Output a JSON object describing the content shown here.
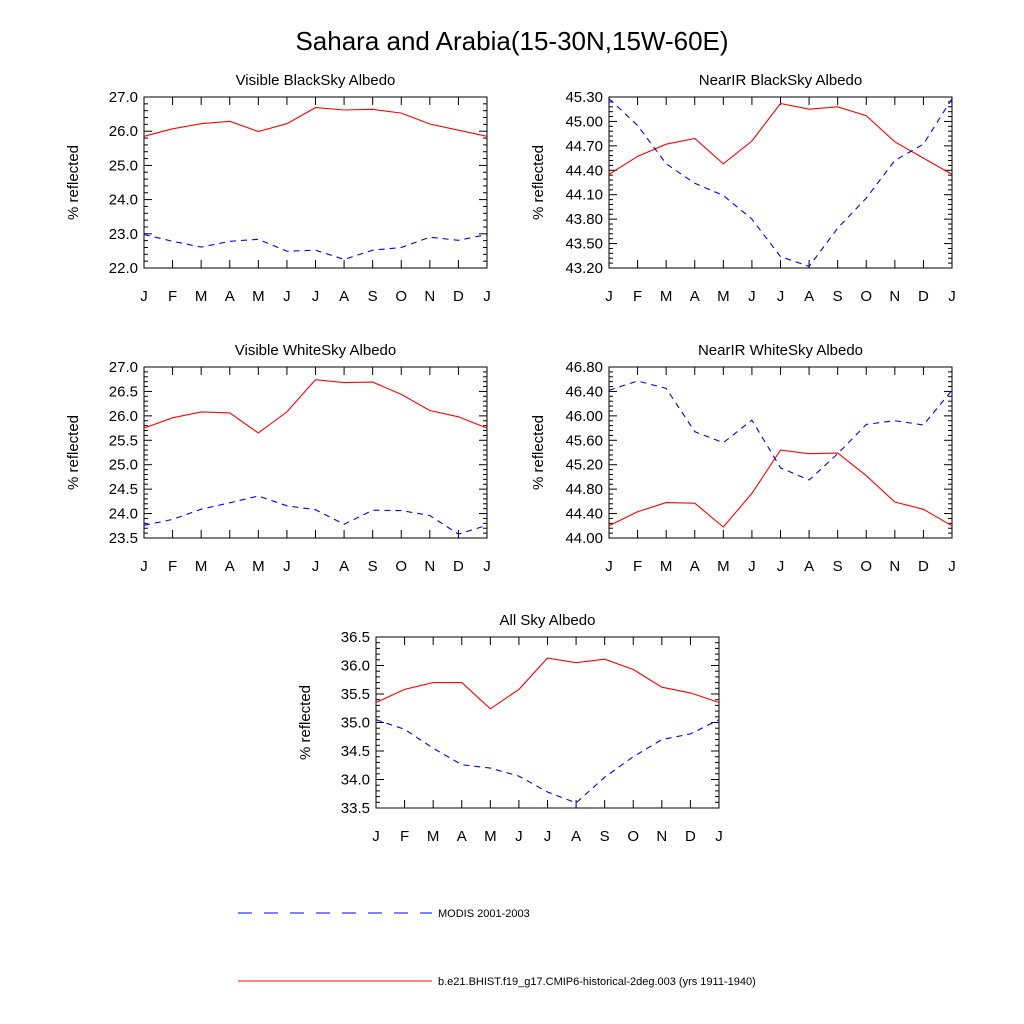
{
  "title": "Sahara and Arabia(15-30N,15W-60E)",
  "colors": {
    "model": "#ff0000",
    "obs": "#0000ff",
    "axis": "#000000"
  },
  "legend": {
    "obs_label": "MODIS 2001-2003",
    "model_label": "b.e21.BHIST.f19_g17.CMIP6-historical-2deg.003 (yrs 1911-1940)"
  },
  "chart_data": [
    {
      "type": "line",
      "title": "Visible BlackSky Albedo",
      "ylabel": "% reflected",
      "categories": [
        "J",
        "F",
        "M",
        "A",
        "M",
        "J",
        "J",
        "A",
        "S",
        "O",
        "N",
        "D",
        "J"
      ],
      "ylim": [
        22.0,
        27.0
      ],
      "yticks": [
        "27.0",
        "26.0",
        "25.0",
        "24.0",
        "23.0",
        "22.0"
      ],
      "series": [
        {
          "name": "b.e21.BHIST.f19_g17.CMIP6-historical-2deg.003 (yrs 1911-1940)",
          "style": "solid",
          "color": "#ff0000",
          "values": [
            25.85,
            26.07,
            26.22,
            26.29,
            25.99,
            26.22,
            26.69,
            26.62,
            26.64,
            26.53,
            26.21,
            26.03,
            25.85
          ]
        },
        {
          "name": "MODIS 2001-2003",
          "style": "dashed",
          "color": "#0000ff",
          "values": [
            22.98,
            22.78,
            22.61,
            22.78,
            22.84,
            22.49,
            22.52,
            22.25,
            22.52,
            22.6,
            22.9,
            22.81,
            22.98
          ]
        }
      ]
    },
    {
      "type": "line",
      "title": "NearIR BlackSky Albedo",
      "ylabel": "% reflected",
      "categories": [
        "J",
        "F",
        "M",
        "A",
        "M",
        "J",
        "J",
        "A",
        "S",
        "O",
        "N",
        "D",
        "J"
      ],
      "ylim": [
        43.2,
        45.3
      ],
      "yticks": [
        "45.30",
        "45.00",
        "44.70",
        "44.40",
        "44.10",
        "43.80",
        "43.50",
        "43.20"
      ],
      "series": [
        {
          "name": "b.e21.BHIST.f19_g17.CMIP6-historical-2deg.003 (yrs 1911-1940)",
          "style": "solid",
          "color": "#ff0000",
          "values": [
            44.35,
            44.57,
            44.72,
            44.79,
            44.48,
            44.76,
            45.22,
            45.15,
            45.18,
            45.07,
            44.75,
            44.55,
            44.35
          ]
        },
        {
          "name": "MODIS 2001-2003",
          "style": "dashed",
          "color": "#0000ff",
          "values": [
            45.28,
            44.95,
            44.48,
            44.24,
            44.09,
            43.8,
            43.34,
            43.22,
            43.69,
            44.06,
            44.52,
            44.72,
            45.28
          ]
        }
      ]
    },
    {
      "type": "line",
      "title": "Visible WhiteSky Albedo",
      "ylabel": "% reflected",
      "categories": [
        "J",
        "F",
        "M",
        "A",
        "M",
        "J",
        "J",
        "A",
        "S",
        "O",
        "N",
        "D",
        "J"
      ],
      "ylim": [
        23.5,
        27.0
      ],
      "yticks": [
        "27.0",
        "26.5",
        "26.0",
        "25.5",
        "25.0",
        "24.5",
        "24.0",
        "23.5"
      ],
      "series": [
        {
          "name": "b.e21.BHIST.f19_g17.CMIP6-historical-2deg.003 (yrs 1911-1940)",
          "style": "solid",
          "color": "#ff0000",
          "values": [
            25.75,
            25.96,
            26.08,
            26.06,
            25.65,
            26.08,
            26.74,
            26.68,
            26.69,
            26.44,
            26.11,
            25.98,
            25.75
          ]
        },
        {
          "name": "MODIS 2001-2003",
          "style": "dashed",
          "color": "#0000ff",
          "values": [
            23.76,
            23.88,
            24.09,
            24.22,
            24.36,
            24.16,
            24.08,
            23.78,
            24.07,
            24.06,
            23.96,
            23.58,
            23.76
          ]
        }
      ]
    },
    {
      "type": "line",
      "title": "NearIR WhiteSky Albedo",
      "ylabel": "% reflected",
      "categories": [
        "J",
        "F",
        "M",
        "A",
        "M",
        "J",
        "J",
        "A",
        "S",
        "O",
        "N",
        "D",
        "J"
      ],
      "ylim": [
        44.0,
        46.8
      ],
      "yticks": [
        "46.80",
        "46.40",
        "46.00",
        "45.60",
        "45.20",
        "44.80",
        "44.40",
        "44.00"
      ],
      "series": [
        {
          "name": "b.e21.BHIST.f19_g17.CMIP6-historical-2deg.003 (yrs 1911-1940)",
          "style": "solid",
          "color": "#ff0000",
          "values": [
            44.2,
            44.43,
            44.58,
            44.57,
            44.18,
            44.73,
            45.44,
            45.38,
            45.39,
            45.02,
            44.59,
            44.47,
            44.2
          ]
        },
        {
          "name": "MODIS 2001-2003",
          "style": "dashed",
          "color": "#0000ff",
          "values": [
            46.42,
            46.57,
            46.45,
            45.74,
            45.56,
            45.93,
            45.15,
            44.95,
            45.38,
            45.86,
            45.92,
            45.85,
            46.42
          ]
        }
      ]
    },
    {
      "type": "line",
      "title": "All Sky Albedo",
      "ylabel": "% reflected",
      "categories": [
        "J",
        "F",
        "M",
        "A",
        "M",
        "J",
        "J",
        "A",
        "S",
        "O",
        "N",
        "D",
        "J"
      ],
      "ylim": [
        33.5,
        36.5
      ],
      "yticks": [
        "36.5",
        "36.0",
        "35.5",
        "35.0",
        "34.5",
        "34.0",
        "33.5"
      ],
      "series": [
        {
          "name": "b.e21.BHIST.f19_g17.CMIP6-historical-2deg.003 (yrs 1911-1940)",
          "style": "solid",
          "color": "#ff0000",
          "values": [
            35.35,
            35.58,
            35.7,
            35.7,
            35.24,
            35.58,
            36.13,
            36.05,
            36.11,
            35.93,
            35.62,
            35.52,
            35.35
          ]
        },
        {
          "name": "MODIS 2001-2003",
          "style": "dashed",
          "color": "#0000ff",
          "values": [
            35.05,
            34.88,
            34.55,
            34.26,
            34.2,
            34.06,
            33.78,
            33.59,
            34.04,
            34.4,
            34.7,
            34.8,
            35.05
          ]
        }
      ]
    }
  ]
}
